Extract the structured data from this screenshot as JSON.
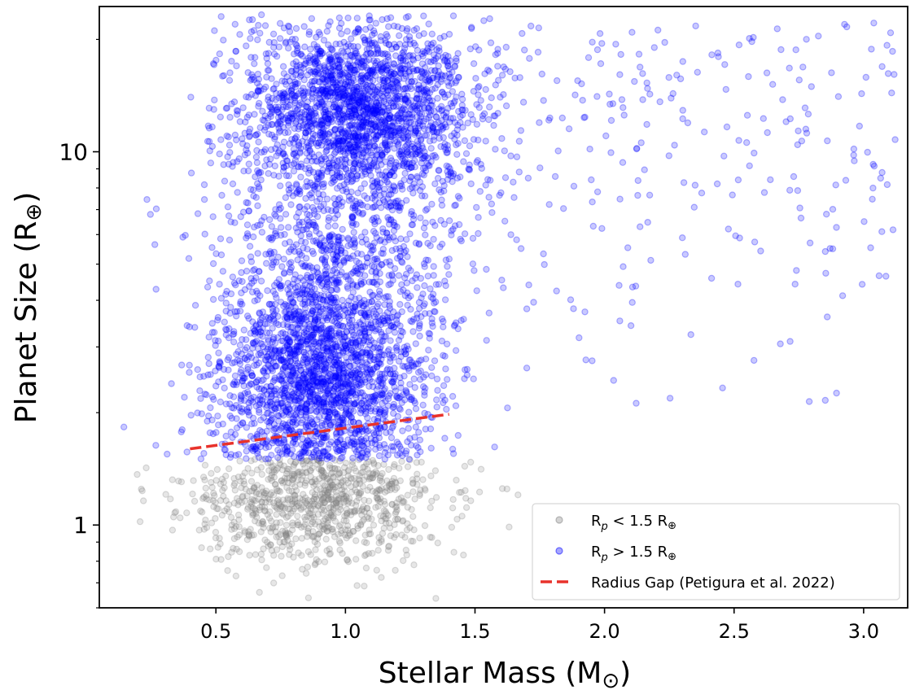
{
  "chart_data": {
    "type": "scatter",
    "xlabel": "Stellar Mass (M",
    "xlabel_symbol": "⊙",
    "xlabel_close": ")",
    "ylabel": "Planet Size (R",
    "ylabel_symbol": "⊕",
    "ylabel_close": ")",
    "xlim": [
      0.05,
      3.17
    ],
    "ylim": [
      0.6,
      24.5
    ],
    "yscale": "log",
    "x_ticks": [
      0.5,
      1.0,
      1.5,
      2.0,
      2.5,
      3.0
    ],
    "x_tick_labels": [
      "0.5",
      "1.0",
      "1.5",
      "2.0",
      "2.5",
      "3.0"
    ],
    "y_ticks": [
      1,
      10
    ],
    "y_tick_labels": [
      "1",
      "10"
    ],
    "threshold": 1.5,
    "series": [
      {
        "name": "R_p < 1.5 R_⊕",
        "label_main": "R",
        "label_sub": "p",
        "label_rest": " < 1.5 R",
        "label_sym": "⊕",
        "color": "#808080",
        "alpha": 0.28,
        "count": 900
      },
      {
        "name": "R_p > 1.5 R_⊕",
        "label_main": "R",
        "label_sub": "p",
        "label_rest": " > 1.5 R",
        "label_sym": "⊕",
        "color": "#0000ff",
        "alpha": 0.3,
        "count": 5200
      }
    ],
    "gap_line": {
      "name": "Radius Gap (Petigura et al. 2022)",
      "color": "#e8322b",
      "x": [
        0.4,
        1.4
      ],
      "y": [
        1.6,
        1.98
      ]
    },
    "legend_location": "lower-right",
    "grid": false
  }
}
